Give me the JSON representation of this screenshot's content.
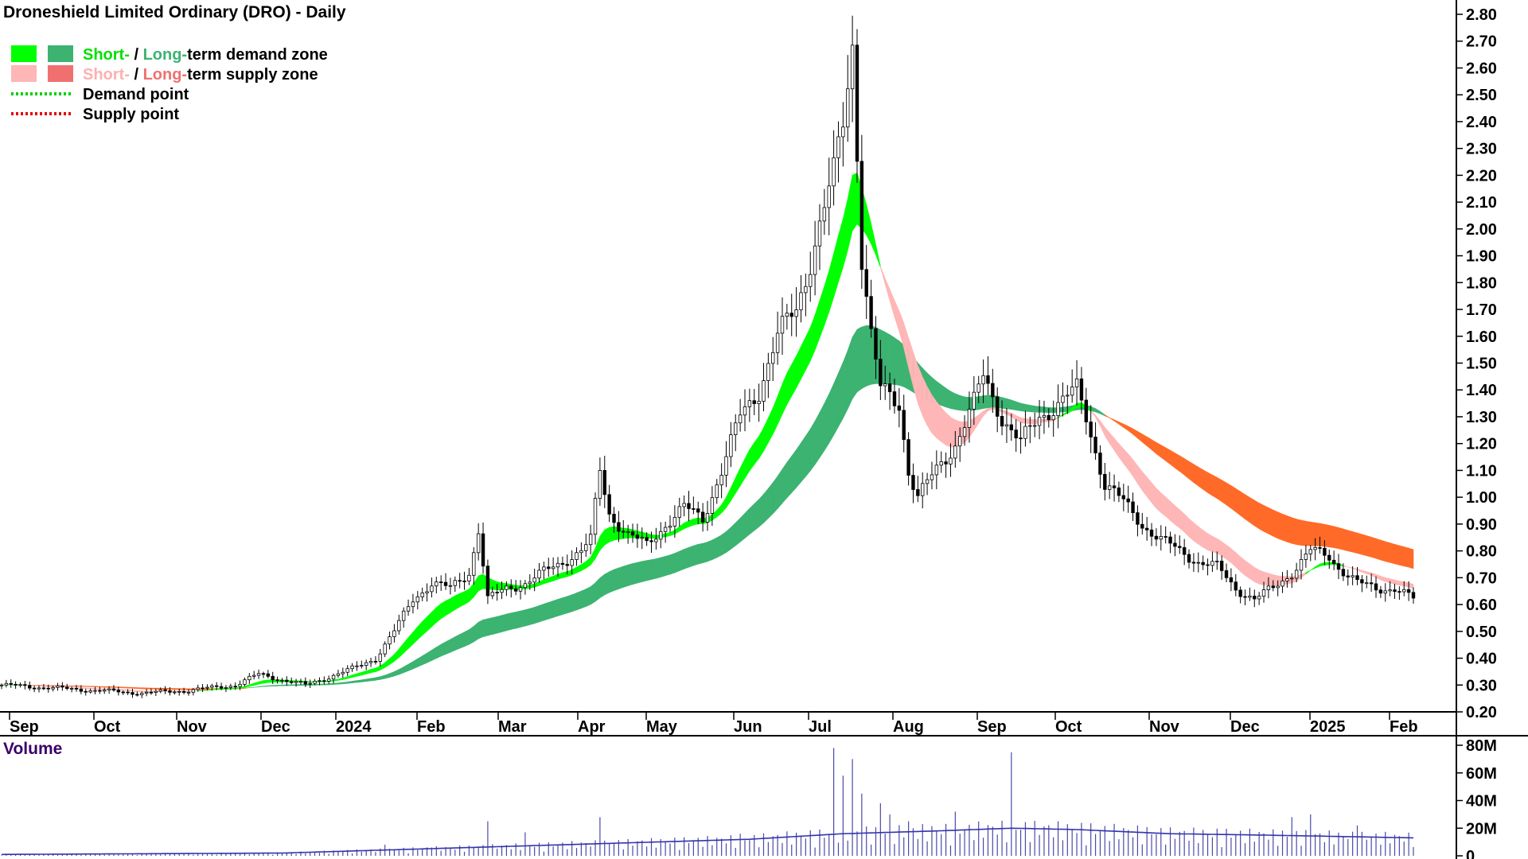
{
  "chart_data": [
    {
      "type": "candlestick",
      "title": "Droneshield Limited Ordinary (DRO) - Daily",
      "legend": {
        "placement": "top-left",
        "items": [
          {
            "parts": [
              {
                "text": "Short-",
                "color": "#00e000"
              },
              {
                "text": " / ",
                "color": "#000000"
              },
              {
                "text": "Long-",
                "color": "#3cb371"
              },
              {
                "text": "term demand zone",
                "color": "#000000"
              }
            ],
            "swatches": [
              "#00ff00",
              "#3cb371"
            ],
            "style": "box"
          },
          {
            "parts": [
              {
                "text": "Short-",
                "color": "#ffb0b0"
              },
              {
                "text": " / ",
                "color": "#000000"
              },
              {
                "text": "Long-",
                "color": "#f07070"
              },
              {
                "text": "term supply zone",
                "color": "#000000"
              }
            ],
            "swatches": [
              "#ffb6b6",
              "#f07070"
            ],
            "style": "box"
          },
          {
            "parts": [
              {
                "text": "Demand point",
                "color": "#000000"
              }
            ],
            "swatches": [
              "#00d000"
            ],
            "style": "dotted"
          },
          {
            "parts": [
              {
                "text": "Supply point",
                "color": "#000000"
              }
            ],
            "swatches": [
              "#e00000"
            ],
            "style": "dotted"
          }
        ]
      },
      "colors": {
        "short_demand": "#00ff00",
        "long_demand": "#3cb371",
        "short_supply": "#ffb6b6",
        "long_supply": "#ff6a28",
        "candle": "#000000"
      },
      "y_axis": {
        "ylim": [
          0.2,
          2.8
        ],
        "side": "right",
        "ticks": [
          "0.20",
          "0.30",
          "0.40",
          "0.50",
          "0.60",
          "0.70",
          "0.80",
          "0.90",
          "1.00",
          "1.10",
          "1.20",
          "1.30",
          "1.40",
          "1.50",
          "1.60",
          "1.70",
          "1.80",
          "1.90",
          "2.00",
          "2.10",
          "2.20",
          "2.30",
          "2.40",
          "2.50",
          "2.60",
          "2.70",
          "2.80"
        ]
      },
      "x_axis": {
        "ticks": [
          "Sep",
          "Oct",
          "Nov",
          "Dec",
          "2024",
          "Feb",
          "Mar",
          "Apr",
          "May",
          "Jun",
          "Jul",
          "Aug",
          "Sep",
          "Oct",
          "Nov",
          "Dec",
          "2025",
          "Feb"
        ]
      },
      "grid": false,
      "series": [
        {
          "points": [
            [
              0,
              0.3
            ],
            [
              10,
              0.29
            ],
            [
              20,
              0.28
            ],
            [
              30,
              0.27
            ],
            [
              40,
              0.28
            ],
            [
              50,
              0.3
            ],
            [
              55,
              0.34
            ],
            [
              60,
              0.32
            ],
            [
              65,
              0.3
            ],
            [
              70,
              0.33
            ],
            [
              75,
              0.36
            ],
            [
              80,
              0.4
            ],
            [
              84,
              0.5
            ],
            [
              88,
              0.62
            ],
            [
              92,
              0.68
            ],
            [
              96,
              0.66
            ],
            [
              100,
              0.72
            ],
            [
              102,
              0.88
            ],
            [
              104,
              0.62
            ],
            [
              108,
              0.66
            ],
            [
              112,
              0.68
            ],
            [
              116,
              0.72
            ],
            [
              120,
              0.76
            ],
            [
              124,
              0.8
            ],
            [
              126,
              0.84
            ],
            [
              128,
              1.1
            ],
            [
              130,
              0.94
            ],
            [
              134,
              0.86
            ],
            [
              138,
              0.82
            ],
            [
              142,
              0.9
            ],
            [
              146,
              0.96
            ],
            [
              150,
              0.92
            ],
            [
              154,
              1.1
            ],
            [
              158,
              1.3
            ],
            [
              162,
              1.4
            ],
            [
              166,
              1.6
            ],
            [
              170,
              1.7
            ],
            [
              174,
              1.95
            ],
            [
              178,
              2.2
            ],
            [
              180,
              2.4
            ],
            [
              182,
              2.7
            ],
            [
              184,
              1.9
            ],
            [
              186,
              1.6
            ],
            [
              188,
              1.4
            ],
            [
              192,
              1.35
            ],
            [
              194,
              1.1
            ],
            [
              196,
              1.0
            ],
            [
              200,
              1.1
            ],
            [
              204,
              1.2
            ],
            [
              208,
              1.35
            ],
            [
              210,
              1.45
            ],
            [
              214,
              1.3
            ],
            [
              218,
              1.2
            ],
            [
              222,
              1.3
            ],
            [
              226,
              1.35
            ],
            [
              230,
              1.4
            ],
            [
              232,
              1.3
            ],
            [
              236,
              1.05
            ],
            [
              240,
              0.98
            ],
            [
              244,
              0.9
            ],
            [
              248,
              0.84
            ],
            [
              252,
              0.8
            ],
            [
              256,
              0.76
            ],
            [
              260,
              0.74
            ],
            [
              264,
              0.66
            ],
            [
              268,
              0.62
            ],
            [
              272,
              0.66
            ],
            [
              276,
              0.72
            ],
            [
              280,
              0.8
            ],
            [
              284,
              0.78
            ],
            [
              286,
              0.74
            ],
            [
              290,
              0.68
            ],
            [
              294,
              0.66
            ],
            [
              298,
              0.66
            ],
            [
              302,
              0.62
            ]
          ]
        }
      ]
    },
    {
      "type": "bar",
      "title": "Volume",
      "y_axis": {
        "ylim": [
          0,
          80
        ],
        "unit": "M",
        "side": "right",
        "ticks": [
          "0",
          "20M",
          "40M",
          "60M",
          "80M"
        ]
      },
      "spikes": [
        [
          82,
          8
        ],
        [
          92,
          6
        ],
        [
          104,
          25
        ],
        [
          112,
          17
        ],
        [
          128,
          28
        ],
        [
          158,
          16
        ],
        [
          178,
          78
        ],
        [
          180,
          58
        ],
        [
          182,
          70
        ],
        [
          184,
          45
        ],
        [
          188,
          38
        ],
        [
          190,
          30
        ],
        [
          194,
          25
        ],
        [
          204,
          32
        ],
        [
          216,
          75
        ],
        [
          276,
          28
        ],
        [
          280,
          30
        ],
        [
          290,
          22
        ]
      ],
      "average": [
        [
          0,
          1
        ],
        [
          60,
          2
        ],
        [
          80,
          4
        ],
        [
          100,
          6
        ],
        [
          120,
          8
        ],
        [
          140,
          10
        ],
        [
          160,
          12
        ],
        [
          180,
          16
        ],
        [
          200,
          18
        ],
        [
          216,
          20
        ],
        [
          230,
          19
        ],
        [
          250,
          16
        ],
        [
          270,
          15
        ],
        [
          302,
          13
        ]
      ]
    }
  ]
}
